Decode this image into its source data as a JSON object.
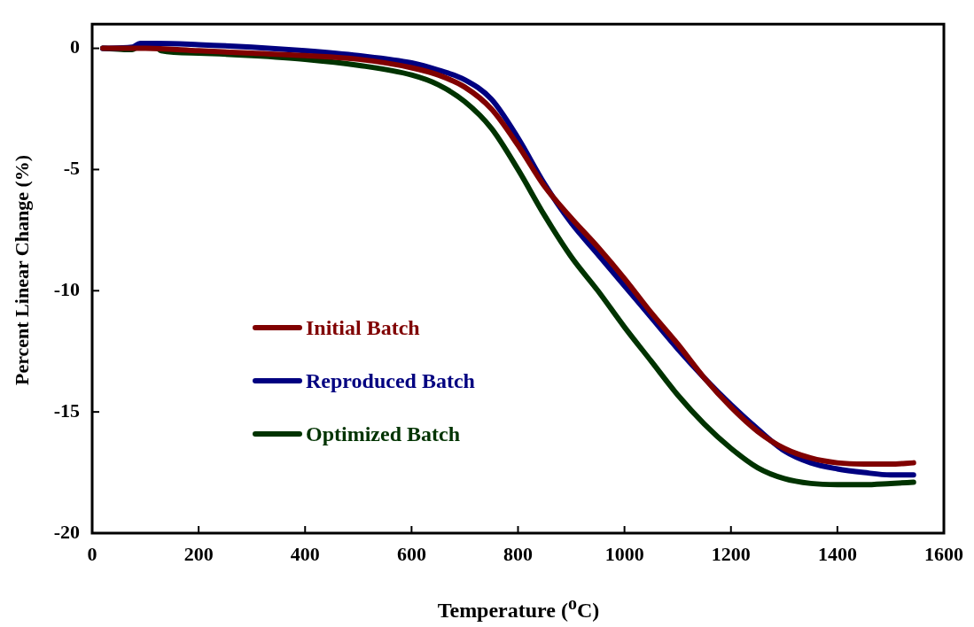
{
  "chart_data": {
    "type": "line",
    "xlabel": "Temperature ($^{o}$C)",
    "ylabel": "Percent Linear Change (%)",
    "xlim": [
      0,
      1600
    ],
    "xticks": [
      0,
      200,
      400,
      600,
      800,
      1000,
      1200,
      1400,
      1600
    ],
    "ylim": [
      -20,
      1
    ],
    "yticks": [
      -20,
      -15,
      -10,
      -5,
      0
    ],
    "grid": false,
    "legend": "left",
    "marker": "none",
    "line_style": "solid",
    "series": [
      {
        "name": "Initial Batch",
        "color": "#800000",
        "x": [
          20,
          100,
          200,
          300,
          400,
          500,
          600,
          650,
          700,
          750,
          800,
          850,
          900,
          950,
          1000,
          1050,
          1100,
          1150,
          1200,
          1250,
          1300,
          1350,
          1400,
          1450,
          1500,
          1543
        ],
        "values": [
          0,
          0,
          -0.1,
          -0.2,
          -0.3,
          -0.45,
          -0.8,
          -1.1,
          -1.6,
          -2.5,
          -4.0,
          -5.7,
          -7.0,
          -8.2,
          -9.5,
          -10.9,
          -12.2,
          -13.6,
          -14.8,
          -15.8,
          -16.5,
          -16.9,
          -17.1,
          -17.15,
          -17.15,
          -17.1
        ]
      },
      {
        "name": "Reproduced Batch",
        "color": "#000080",
        "x": [
          20,
          75,
          90,
          120,
          200,
          300,
          400,
          500,
          600,
          650,
          700,
          750,
          800,
          850,
          900,
          950,
          1000,
          1050,
          1100,
          1150,
          1200,
          1250,
          1300,
          1350,
          1400,
          1450,
          1500,
          1543
        ],
        "values": [
          0,
          0.05,
          0.2,
          0.2,
          0.15,
          0.05,
          -0.1,
          -0.3,
          -0.6,
          -0.9,
          -1.3,
          -2.1,
          -3.7,
          -5.6,
          -7.2,
          -8.5,
          -9.8,
          -11.1,
          -12.4,
          -13.6,
          -14.7,
          -15.7,
          -16.6,
          -17.1,
          -17.35,
          -17.5,
          -17.6,
          -17.6
        ]
      },
      {
        "name": "Optimized Batch",
        "color": "#003300",
        "x": [
          20,
          60,
          75,
          85,
          100,
          120,
          130,
          200,
          300,
          400,
          500,
          600,
          650,
          700,
          750,
          800,
          850,
          900,
          950,
          1000,
          1050,
          1100,
          1150,
          1200,
          1250,
          1300,
          1350,
          1400,
          1450,
          1500,
          1543
        ],
        "values": [
          0,
          -0.05,
          -0.05,
          0.05,
          0.1,
          0.05,
          -0.1,
          -0.2,
          -0.3,
          -0.45,
          -0.7,
          -1.1,
          -1.5,
          -2.2,
          -3.3,
          -5.0,
          -6.9,
          -8.6,
          -10.0,
          -11.5,
          -12.9,
          -14.3,
          -15.5,
          -16.5,
          -17.3,
          -17.75,
          -17.95,
          -18.0,
          -18.0,
          -17.95,
          -17.9
        ]
      }
    ]
  }
}
